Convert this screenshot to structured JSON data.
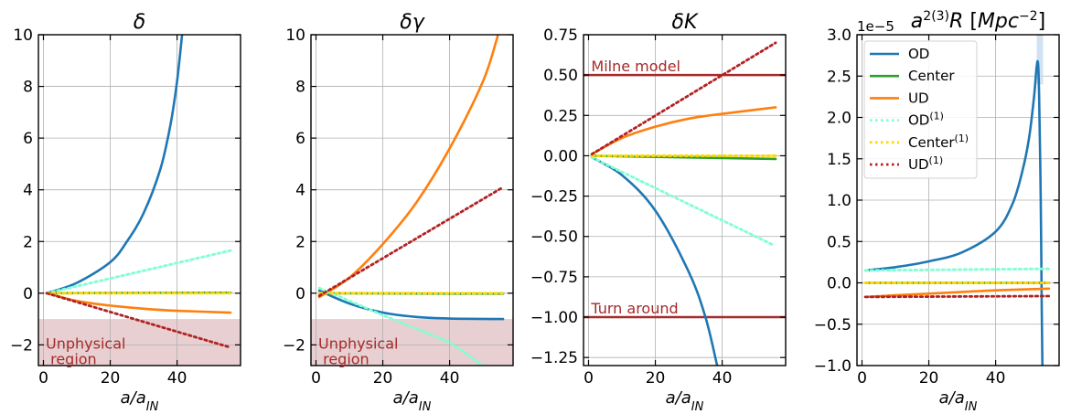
{
  "chart_data": [
    {
      "type": "line",
      "title": "δ",
      "xlabel": "a/a_IN",
      "xlim": [
        -1.5,
        59
      ],
      "ylim": [
        -2.8,
        10
      ],
      "xticks": [
        0,
        20,
        40
      ],
      "yticks": [
        -2,
        0,
        2,
        4,
        6,
        8,
        10
      ],
      "grid": true,
      "shaded_region": {
        "y_from": -2.8,
        "y_to": -1.0,
        "label": "Unphysical\n region"
      },
      "series": [
        {
          "name": "OD",
          "style": "solid",
          "x": [
            1,
            10,
            20,
            25,
            30,
            35,
            38,
            40,
            41.5
          ],
          "y": [
            0,
            0.4,
            1.2,
            2.0,
            3.1,
            4.8,
            6.5,
            8.2,
            10
          ]
        },
        {
          "name": "Center",
          "style": "solid",
          "x": [
            1,
            56
          ],
          "y": [
            0,
            0.02
          ]
        },
        {
          "name": "UD",
          "style": "solid",
          "x": [
            1,
            10,
            20,
            30,
            40,
            56
          ],
          "y": [
            0,
            -0.3,
            -0.48,
            -0.6,
            -0.68,
            -0.75
          ]
        },
        {
          "name": "OD(1)",
          "style": "dotted",
          "x": [
            1,
            56
          ],
          "y": [
            0,
            1.65
          ]
        },
        {
          "name": "Center(1)",
          "style": "dotted",
          "x": [
            1,
            56
          ],
          "y": [
            0,
            0.0
          ]
        },
        {
          "name": "UD(1)",
          "style": "dotted",
          "x": [
            1,
            56
          ],
          "y": [
            0,
            -2.1
          ]
        }
      ]
    },
    {
      "type": "line",
      "title": "δγ",
      "xlabel": "a/a_IN",
      "xlim": [
        -1.5,
        59
      ],
      "ylim": [
        -2.8,
        10
      ],
      "xticks": [
        0,
        20,
        40
      ],
      "yticks": [
        -2,
        0,
        2,
        4,
        6,
        8,
        10
      ],
      "grid": true,
      "shaded_region": {
        "y_from": -2.8,
        "y_to": -1.0,
        "label": "Unphysical\n region"
      },
      "series": [
        {
          "name": "OD",
          "style": "solid",
          "x": [
            1,
            10,
            20,
            30,
            40,
            56
          ],
          "y": [
            0.1,
            -0.4,
            -0.75,
            -0.92,
            -0.98,
            -1.0
          ]
        },
        {
          "name": "Center",
          "style": "solid",
          "x": [
            1,
            56
          ],
          "y": [
            0,
            -0.02
          ]
        },
        {
          "name": "UD",
          "style": "solid",
          "x": [
            1,
            10,
            20,
            30,
            40,
            50,
            54.5
          ],
          "y": [
            -0.15,
            0.6,
            1.9,
            3.5,
            5.6,
            8.2,
            10
          ]
        },
        {
          "name": "OD(1)",
          "style": "dotted",
          "x": [
            1,
            20,
            40,
            50
          ],
          "y": [
            0.2,
            -0.85,
            -1.9,
            -2.8
          ]
        },
        {
          "name": "Center(1)",
          "style": "dotted",
          "x": [
            1,
            56
          ],
          "y": [
            0,
            0
          ]
        },
        {
          "name": "UD(1)",
          "style": "dotted",
          "x": [
            1,
            56
          ],
          "y": [
            -0.1,
            4.1
          ]
        }
      ]
    },
    {
      "type": "line",
      "title": "δK",
      "xlabel": "a/a_IN",
      "xlim": [
        -1.5,
        59
      ],
      "ylim": [
        -1.3,
        0.75
      ],
      "xticks": [
        0,
        20,
        40
      ],
      "yticks": [
        -1.25,
        -1.0,
        -0.75,
        -0.5,
        -0.25,
        0.0,
        0.25,
        0.5,
        0.75
      ],
      "grid": true,
      "hlines": [
        {
          "y": 0.5,
          "label": "Milne model"
        },
        {
          "y": -1.0,
          "label": "Turn around"
        }
      ],
      "series": [
        {
          "name": "OD",
          "style": "solid",
          "x": [
            1,
            10,
            20,
            30,
            35,
            38.5
          ],
          "y": [
            -0.01,
            -0.12,
            -0.34,
            -0.72,
            -1.0,
            -1.3
          ]
        },
        {
          "name": "Center",
          "style": "solid",
          "x": [
            1,
            56
          ],
          "y": [
            0,
            -0.02
          ]
        },
        {
          "name": "UD",
          "style": "solid",
          "x": [
            1,
            10,
            20,
            30,
            40,
            56
          ],
          "y": [
            0.01,
            0.11,
            0.18,
            0.23,
            0.26,
            0.3
          ]
        },
        {
          "name": "OD(1)",
          "style": "dotted",
          "x": [
            1,
            55
          ],
          "y": [
            -0.01,
            -0.55
          ]
        },
        {
          "name": "Center(1)",
          "style": "dotted",
          "x": [
            1,
            56
          ],
          "y": [
            0,
            0
          ]
        },
        {
          "name": "UD(1)",
          "style": "dotted",
          "x": [
            1,
            56
          ],
          "y": [
            0.01,
            0.7
          ]
        }
      ]
    },
    {
      "type": "line",
      "title": "a^2(3)R  [Mpc^-2]",
      "title_base": "a",
      "title_sup": "2(3)",
      "title_rest": "R  [",
      "title_unit": "Mpc",
      "title_unit_sup": "−2",
      "title_close": "]",
      "offset_text": "1e−5",
      "xlabel": "a/a_IN",
      "xlim": [
        -1.5,
        59
      ],
      "ylim": [
        -1.0,
        3.0
      ],
      "xticks": [
        0,
        20,
        40
      ],
      "yticks": [
        -1.0,
        -0.5,
        0.0,
        0.5,
        1.0,
        1.5,
        2.0,
        2.5,
        3.0
      ],
      "grid": true,
      "legend_position": "top-left",
      "legend": [
        {
          "label": "OD",
          "sup": "",
          "style": "solid"
        },
        {
          "label": "Center",
          "sup": "",
          "style": "solid"
        },
        {
          "label": "UD",
          "sup": "",
          "style": "solid"
        },
        {
          "label": "OD",
          "sup": "(1)",
          "style": "dotted"
        },
        {
          "label": "Center",
          "sup": "(1)",
          "style": "dotted"
        },
        {
          "label": "UD",
          "sup": "(1)",
          "style": "dotted"
        }
      ],
      "series": [
        {
          "name": "OD",
          "style": "solid",
          "x": [
            1,
            10,
            20,
            30,
            40,
            45,
            48,
            50,
            51.5,
            52.5,
            53,
            53.5,
            53.8,
            54
          ],
          "y": [
            0.15,
            0.19,
            0.26,
            0.37,
            0.62,
            0.95,
            1.35,
            1.75,
            2.25,
            2.68,
            2.3,
            1.0,
            -0.3,
            -1.0
          ]
        },
        {
          "name": "Center",
          "style": "solid",
          "x": [
            1,
            56
          ],
          "y": [
            0,
            0.0
          ]
        },
        {
          "name": "UD",
          "style": "solid",
          "x": [
            1,
            10,
            20,
            30,
            40,
            56
          ],
          "y": [
            -0.17,
            -0.15,
            -0.13,
            -0.11,
            -0.09,
            -0.07
          ]
        },
        {
          "name": "OD(1)",
          "style": "dotted",
          "x": [
            1,
            56
          ],
          "y": [
            0.15,
            0.17
          ]
        },
        {
          "name": "Center(1)",
          "style": "dotted",
          "x": [
            1,
            56
          ],
          "y": [
            0,
            0
          ]
        },
        {
          "name": "UD(1)",
          "style": "dotted",
          "x": [
            1,
            56
          ],
          "y": [
            -0.17,
            -0.16
          ]
        }
      ]
    }
  ],
  "colors": {
    "OD": "#1f77b4",
    "Center": "#2ca02c",
    "UD": "#ff7f0e",
    "OD(1)": "#7fffd4",
    "Center(1)": "#ffd700",
    "UD(1)": "#b22222",
    "reference_line": "#a52a2a",
    "shade": "#e8cfd1",
    "uncertainty_band": "#c6dbef"
  }
}
